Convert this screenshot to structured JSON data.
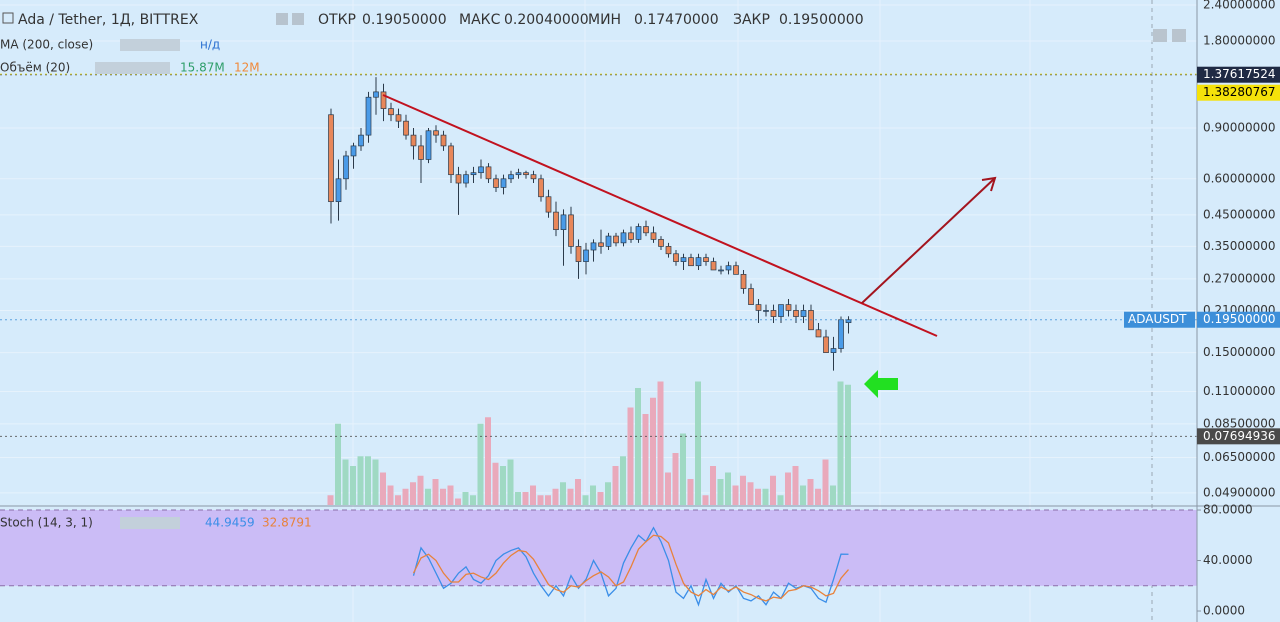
{
  "chart_data": {
    "type": "candlestick",
    "title": "Ada / Tether, 1Д, BITTREX",
    "ohlc_legend": [
      {
        "label": "ОТКР",
        "value": "0.19050000"
      },
      {
        "label": "МАКС",
        "value": "0.20040000"
      },
      {
        "label": "МИН",
        "value": "0.17470000"
      },
      {
        "label": "ЗАКР",
        "value": "0.19500000"
      }
    ],
    "ma_legend": {
      "name": "MA (200, close)",
      "value": "н/д"
    },
    "volume_legend": {
      "name": "Объём (20)",
      "values": [
        "15.87M",
        "12M"
      ]
    },
    "log_scale": true,
    "ylim": [
      0.0445,
      2.497
    ],
    "yticks": [
      {
        "value": 2.4,
        "label": "2.40000000"
      },
      {
        "value": 1.8,
        "label": "1.80000000"
      },
      {
        "value": 0.9,
        "label": "0.90000000"
      },
      {
        "value": 0.6,
        "label": "0.60000000"
      },
      {
        "value": 0.45,
        "label": "0.45000000"
      },
      {
        "value": 0.35,
        "label": "0.35000000"
      },
      {
        "value": 0.27,
        "label": "0.27000000"
      },
      {
        "value": 0.21,
        "label": "0.21000000"
      },
      {
        "value": 0.15,
        "label": "0.15000000"
      },
      {
        "value": 0.11,
        "label": "0.11000000"
      },
      {
        "value": 0.085,
        "label": "0.08500000"
      },
      {
        "value": 0.065,
        "label": "0.06500000"
      },
      {
        "value": 0.049,
        "label": "0.04900000"
      }
    ],
    "grid": true,
    "colors": {
      "up": "#4a9be8",
      "down": "#e8875a",
      "up_volume": "#9fd9c3",
      "down_volume": "#e9a9bb"
    },
    "candles": [
      [
        1.0,
        1.05,
        0.42,
        0.5
      ],
      [
        0.5,
        0.7,
        0.43,
        0.6
      ],
      [
        0.6,
        0.75,
        0.55,
        0.72
      ],
      [
        0.72,
        0.8,
        0.65,
        0.78
      ],
      [
        0.78,
        0.9,
        0.75,
        0.85
      ],
      [
        0.85,
        1.2,
        0.8,
        1.15
      ],
      [
        1.15,
        1.35,
        1.0,
        1.2
      ],
      [
        1.2,
        1.28,
        0.95,
        1.05
      ],
      [
        1.05,
        1.1,
        0.95,
        1.0
      ],
      [
        1.0,
        1.05,
        0.9,
        0.95
      ],
      [
        0.95,
        1.0,
        0.82,
        0.85
      ],
      [
        0.85,
        0.9,
        0.7,
        0.78
      ],
      [
        0.78,
        0.85,
        0.58,
        0.7
      ],
      [
        0.7,
        0.9,
        0.68,
        0.88
      ],
      [
        0.88,
        0.92,
        0.8,
        0.85
      ],
      [
        0.85,
        0.88,
        0.75,
        0.78
      ],
      [
        0.78,
        0.8,
        0.58,
        0.62
      ],
      [
        0.62,
        0.66,
        0.45,
        0.58
      ],
      [
        0.58,
        0.64,
        0.56,
        0.62
      ],
      [
        0.62,
        0.66,
        0.58,
        0.63
      ],
      [
        0.63,
        0.7,
        0.6,
        0.66
      ],
      [
        0.66,
        0.68,
        0.58,
        0.6
      ],
      [
        0.6,
        0.62,
        0.54,
        0.56
      ],
      [
        0.56,
        0.62,
        0.53,
        0.6
      ],
      [
        0.6,
        0.64,
        0.58,
        0.62
      ],
      [
        0.62,
        0.65,
        0.6,
        0.63
      ],
      [
        0.63,
        0.64,
        0.6,
        0.62
      ],
      [
        0.62,
        0.64,
        0.58,
        0.6
      ],
      [
        0.6,
        0.62,
        0.5,
        0.52
      ],
      [
        0.52,
        0.55,
        0.44,
        0.46
      ],
      [
        0.46,
        0.5,
        0.38,
        0.4
      ],
      [
        0.4,
        0.47,
        0.3,
        0.45
      ],
      [
        0.45,
        0.48,
        0.33,
        0.35
      ],
      [
        0.35,
        0.37,
        0.27,
        0.31
      ],
      [
        0.31,
        0.36,
        0.28,
        0.34
      ],
      [
        0.34,
        0.37,
        0.31,
        0.36
      ],
      [
        0.36,
        0.4,
        0.33,
        0.35
      ],
      [
        0.35,
        0.39,
        0.34,
        0.38
      ],
      [
        0.38,
        0.39,
        0.35,
        0.36
      ],
      [
        0.36,
        0.4,
        0.35,
        0.39
      ],
      [
        0.39,
        0.41,
        0.36,
        0.37
      ],
      [
        0.37,
        0.42,
        0.36,
        0.41
      ],
      [
        0.41,
        0.43,
        0.38,
        0.39
      ],
      [
        0.39,
        0.41,
        0.36,
        0.37
      ],
      [
        0.37,
        0.38,
        0.34,
        0.35
      ],
      [
        0.35,
        0.36,
        0.32,
        0.33
      ],
      [
        0.33,
        0.34,
        0.3,
        0.31
      ],
      [
        0.31,
        0.33,
        0.29,
        0.32
      ],
      [
        0.32,
        0.33,
        0.3,
        0.3
      ],
      [
        0.3,
        0.33,
        0.29,
        0.32
      ],
      [
        0.32,
        0.33,
        0.3,
        0.31
      ],
      [
        0.31,
        0.32,
        0.29,
        0.29
      ],
      [
        0.29,
        0.3,
        0.28,
        0.29
      ],
      [
        0.29,
        0.31,
        0.28,
        0.3
      ],
      [
        0.3,
        0.31,
        0.28,
        0.28
      ],
      [
        0.28,
        0.29,
        0.24,
        0.25
      ],
      [
        0.25,
        0.26,
        0.22,
        0.22
      ],
      [
        0.22,
        0.23,
        0.19,
        0.21
      ],
      [
        0.21,
        0.22,
        0.2,
        0.21
      ],
      [
        0.21,
        0.22,
        0.19,
        0.2
      ],
      [
        0.2,
        0.22,
        0.19,
        0.22
      ],
      [
        0.22,
        0.23,
        0.2,
        0.21
      ],
      [
        0.21,
        0.22,
        0.19,
        0.2
      ],
      [
        0.2,
        0.22,
        0.19,
        0.21
      ],
      [
        0.21,
        0.22,
        0.18,
        0.18
      ],
      [
        0.18,
        0.19,
        0.17,
        0.17
      ],
      [
        0.17,
        0.18,
        0.15,
        0.15
      ],
      [
        0.15,
        0.17,
        0.13,
        0.155
      ],
      [
        0.155,
        0.2,
        0.15,
        0.195
      ],
      [
        0.1905,
        0.2004,
        0.1747,
        0.195
      ]
    ],
    "volume": {
      "ylim": [
        0,
        40
      ],
      "values": [
        3,
        25,
        14,
        12,
        15,
        15,
        14,
        10,
        6,
        3,
        5,
        7,
        9,
        5,
        8,
        5,
        6,
        2,
        4,
        3,
        25,
        27,
        13,
        12,
        14,
        4,
        4,
        6,
        3,
        3,
        5,
        7,
        5,
        8,
        3,
        6,
        4,
        7,
        12,
        15,
        30,
        36,
        28,
        33,
        38,
        10,
        16,
        22,
        8,
        38,
        3,
        12,
        8,
        10,
        6,
        9,
        7,
        5,
        5,
        9,
        3,
        10,
        12,
        6,
        8,
        5,
        14,
        6,
        38,
        37
      ]
    },
    "price_labels": [
      {
        "value": 1.37617524,
        "label": "1.37617524",
        "color": "#1f2a44",
        "text_color": "#ffffff"
      },
      {
        "value": 1.38280767,
        "label": "1.38280767",
        "color": "#f5e20a",
        "text_color": "#000000"
      },
      {
        "value": 0.195,
        "label": "0.19500000",
        "symbol": "ADAUSDT",
        "color": "#3d8fd9",
        "text_color": "#ffffff"
      },
      {
        "value": 0.07694936,
        "label": "0.07694936",
        "color": "#4a4a4a",
        "text_color": "#ffffff"
      }
    ],
    "stoch": {
      "name": "Stoch (14, 3, 1)",
      "ylim": [
        -8.7,
        82.4
      ],
      "yticks": [
        {
          "value": 80,
          "label": "80.0000"
        },
        {
          "value": 40,
          "label": "40.0000"
        },
        {
          "value": 0,
          "label": "0.0000"
        }
      ],
      "band": [
        20,
        80
      ],
      "series": [
        {
          "name": "44.9459",
          "color": "#3b8ee8",
          "values": [
            null,
            null,
            null,
            null,
            null,
            null,
            null,
            null,
            null,
            null,
            null,
            28,
            50,
            42,
            30,
            18,
            22,
            30,
            35,
            25,
            22,
            28,
            40,
            45,
            48,
            50,
            43,
            30,
            20,
            12,
            20,
            12,
            28,
            18,
            25,
            40,
            30,
            12,
            18,
            38,
            50,
            60,
            55,
            66,
            55,
            40,
            15,
            10,
            20,
            5,
            25,
            10,
            22,
            15,
            20,
            10,
            8,
            12,
            5,
            15,
            10,
            22,
            18,
            20,
            18,
            10,
            7,
            25,
            45,
            44.9459
          ]
        },
        {
          "name": "32.8791",
          "color": "#e8823b",
          "values": [
            null,
            null,
            null,
            null,
            null,
            null,
            null,
            null,
            null,
            null,
            null,
            30,
            42,
            45,
            40,
            30,
            23,
            23,
            29,
            30,
            27,
            25,
            30,
            38,
            44,
            48,
            47,
            41,
            31,
            21,
            17,
            15,
            20,
            19,
            24,
            28,
            31,
            27,
            20,
            23,
            35,
            49,
            55,
            60,
            59,
            54,
            37,
            22,
            15,
            12,
            17,
            13,
            19,
            16,
            19,
            15,
            13,
            10,
            8,
            11,
            10,
            16,
            17,
            20,
            19,
            16,
            12,
            14,
            26,
            32.8791
          ]
        }
      ]
    }
  }
}
